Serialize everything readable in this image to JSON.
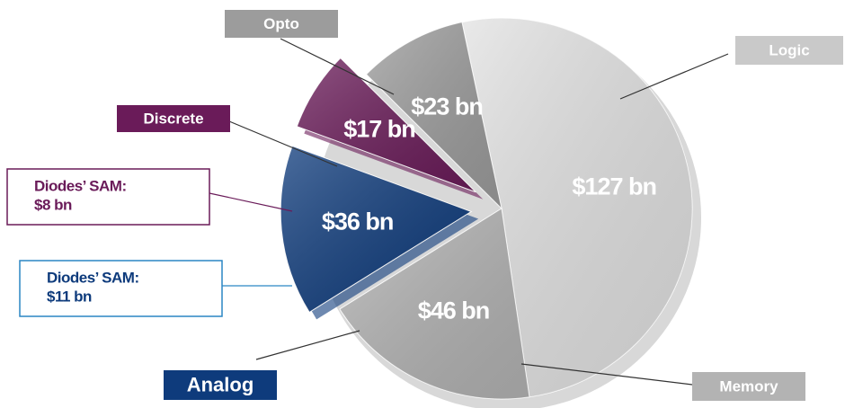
{
  "chart_data": {
    "type": "pie",
    "categories": [
      "Logic",
      "Memory",
      "Analog",
      "Discrete",
      "Opto"
    ],
    "values": [
      127,
      46,
      36,
      17,
      23
    ],
    "value_labels": [
      "$127 bn",
      "$46 bn",
      "$36 bn",
      "$17 bn",
      "$23 bn"
    ],
    "colors": [
      "#e2e2e2",
      "#b3b3b3",
      "#0e3b7c",
      "#6a1b59",
      "#9c9c9c"
    ],
    "exploded": [
      "Analog",
      "Discrete"
    ],
    "annotations": [
      {
        "lines": [
          "Diodes’ SAM:",
          "$8 bn"
        ],
        "color": "#6a1b59"
      },
      {
        "lines": [
          "Diodes’ SAM:",
          "$11 bn"
        ],
        "color": "#2a86c4"
      }
    ]
  }
}
